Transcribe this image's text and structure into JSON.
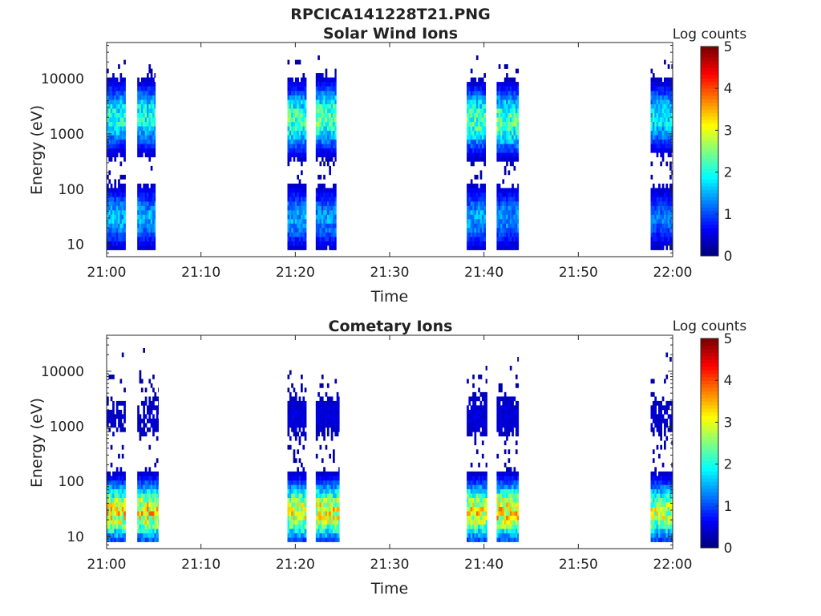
{
  "figure": {
    "title": "RPCICA141228T21.PNG"
  },
  "chart_data": [
    {
      "type": "heatmap",
      "title": "Solar Wind Ions",
      "xlabel": "Time",
      "ylabel": "Energy (eV)",
      "x_ticks": [
        "21:00",
        "21:10",
        "21:20",
        "21:30",
        "21:40",
        "21:50",
        "22:00"
      ],
      "y_ticks": [
        "10",
        "100",
        "1000",
        "10000"
      ],
      "y_scale": "log",
      "xlim": [
        "21:00",
        "22:00"
      ],
      "ylim": [
        6,
        45000
      ],
      "colorbar": {
        "label": "Log counts",
        "ticks": [
          "0",
          "1",
          "2",
          "3",
          "4",
          "5"
        ],
        "range": [
          0,
          5
        ],
        "colormap": "jet"
      },
      "bursts": [
        {
          "start": "21:00:00",
          "end": "21:02:00",
          "hi_peak_eV": 2000,
          "hi_level": 2.2,
          "lo_peak_eV": 30,
          "lo_level": 1.7
        },
        {
          "start": "21:03:15",
          "end": "21:05:10",
          "hi_peak_eV": 2000,
          "hi_level": 2.2,
          "lo_peak_eV": 30,
          "lo_level": 1.6
        },
        {
          "start": "21:19:10",
          "end": "21:21:10",
          "hi_peak_eV": 1800,
          "hi_level": 2.5,
          "lo_peak_eV": 30,
          "lo_level": 1.6
        },
        {
          "start": "21:22:10",
          "end": "21:24:20",
          "hi_peak_eV": 2000,
          "hi_level": 2.6,
          "lo_peak_eV": 30,
          "lo_level": 1.5
        },
        {
          "start": "21:38:10",
          "end": "21:40:10",
          "hi_peak_eV": 1800,
          "hi_level": 2.5,
          "lo_peak_eV": 30,
          "lo_level": 1.6
        },
        {
          "start": "21:41:20",
          "end": "21:43:40",
          "hi_peak_eV": 1700,
          "hi_level": 2.6,
          "lo_peak_eV": 30,
          "lo_level": 1.5
        },
        {
          "start": "21:57:40",
          "end": "22:00:00",
          "hi_peak_eV": 2000,
          "hi_level": 2.0,
          "lo_peak_eV": 30,
          "lo_level": 1.3
        }
      ]
    },
    {
      "type": "heatmap",
      "title": "Cometary Ions",
      "xlabel": "Time",
      "ylabel": "Energy (eV)",
      "x_ticks": [
        "21:00",
        "21:10",
        "21:20",
        "21:30",
        "21:40",
        "21:50",
        "22:00"
      ],
      "y_ticks": [
        "10",
        "100",
        "1000",
        "10000"
      ],
      "y_scale": "log",
      "xlim": [
        "21:00",
        "22:00"
      ],
      "ylim": [
        6,
        45000
      ],
      "colorbar": {
        "label": "Log counts",
        "ticks": [
          "0",
          "1",
          "2",
          "3",
          "4",
          "5"
        ],
        "range": [
          0,
          5
        ],
        "colormap": "jet"
      },
      "bursts": [
        {
          "start": "21:00:00",
          "end": "21:02:00",
          "hi_peak_eV": 1500,
          "hi_level": 0.4,
          "lo_peak_eV": 28,
          "lo_level": 3.4
        },
        {
          "start": "21:03:15",
          "end": "21:05:30",
          "hi_peak_eV": 1500,
          "hi_level": 0.4,
          "lo_peak_eV": 28,
          "lo_level": 3.5
        },
        {
          "start": "21:19:10",
          "end": "21:21:10",
          "hi_peak_eV": 1500,
          "hi_level": 0.5,
          "lo_peak_eV": 28,
          "lo_level": 3.3
        },
        {
          "start": "21:22:10",
          "end": "21:24:40",
          "hi_peak_eV": 1500,
          "hi_level": 0.5,
          "lo_peak_eV": 28,
          "lo_level": 3.4
        },
        {
          "start": "21:38:10",
          "end": "21:40:20",
          "hi_peak_eV": 1500,
          "hi_level": 0.5,
          "lo_peak_eV": 28,
          "lo_level": 3.4
        },
        {
          "start": "21:41:20",
          "end": "21:43:40",
          "hi_peak_eV": 1500,
          "hi_level": 0.5,
          "lo_peak_eV": 28,
          "lo_level": 3.6
        },
        {
          "start": "21:57:40",
          "end": "22:00:00",
          "hi_peak_eV": 1500,
          "hi_level": 0.4,
          "lo_peak_eV": 28,
          "lo_level": 3.1
        }
      ]
    }
  ]
}
